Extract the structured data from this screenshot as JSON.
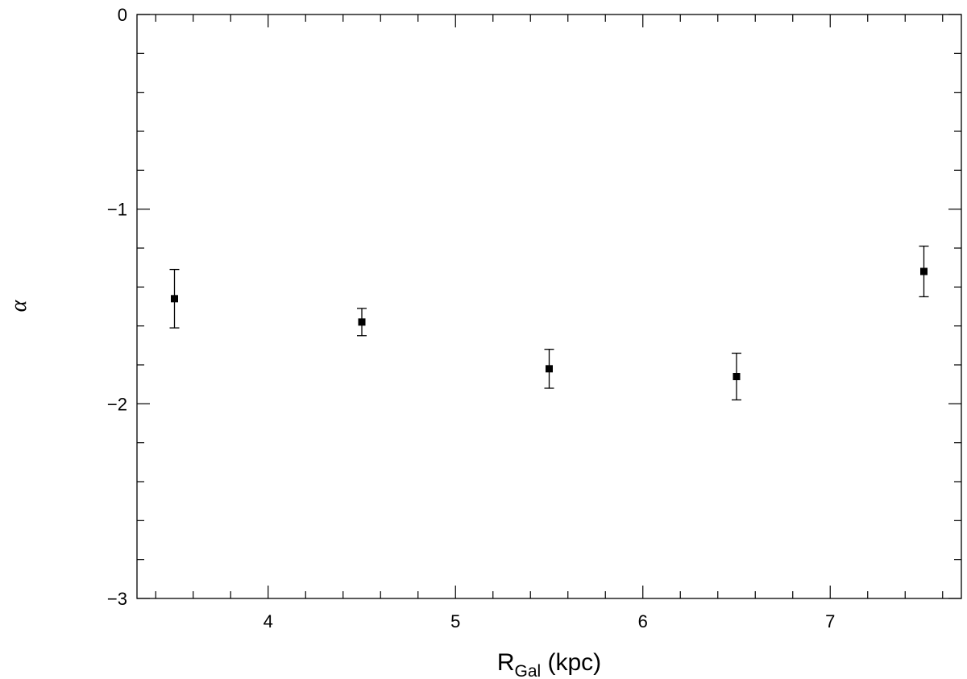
{
  "chart_data": {
    "type": "scatter",
    "xlabel_main": "R",
    "xlabel_sub": "Gal",
    "xlabel_unit": " (kpc)",
    "ylabel": "α",
    "xlim": [
      3.3,
      7.7
    ],
    "ylim": [
      -3,
      0
    ],
    "x_major_ticks": [
      4,
      5,
      6,
      7
    ],
    "x_minor_step": 0.2,
    "y_major_ticks": [
      0,
      -1,
      -2,
      -3
    ],
    "y_tick_labels": [
      "0",
      "−1",
      "−2",
      "−3"
    ],
    "y_minor_step": 0.2,
    "grid": false,
    "points": [
      {
        "x": 3.5,
        "y": -1.46,
        "err": 0.15
      },
      {
        "x": 4.5,
        "y": -1.58,
        "err": 0.07
      },
      {
        "x": 5.5,
        "y": -1.82,
        "err": 0.1
      },
      {
        "x": 6.5,
        "y": -1.86,
        "err": 0.12
      },
      {
        "x": 7.5,
        "y": -1.32,
        "err": 0.13
      }
    ]
  }
}
